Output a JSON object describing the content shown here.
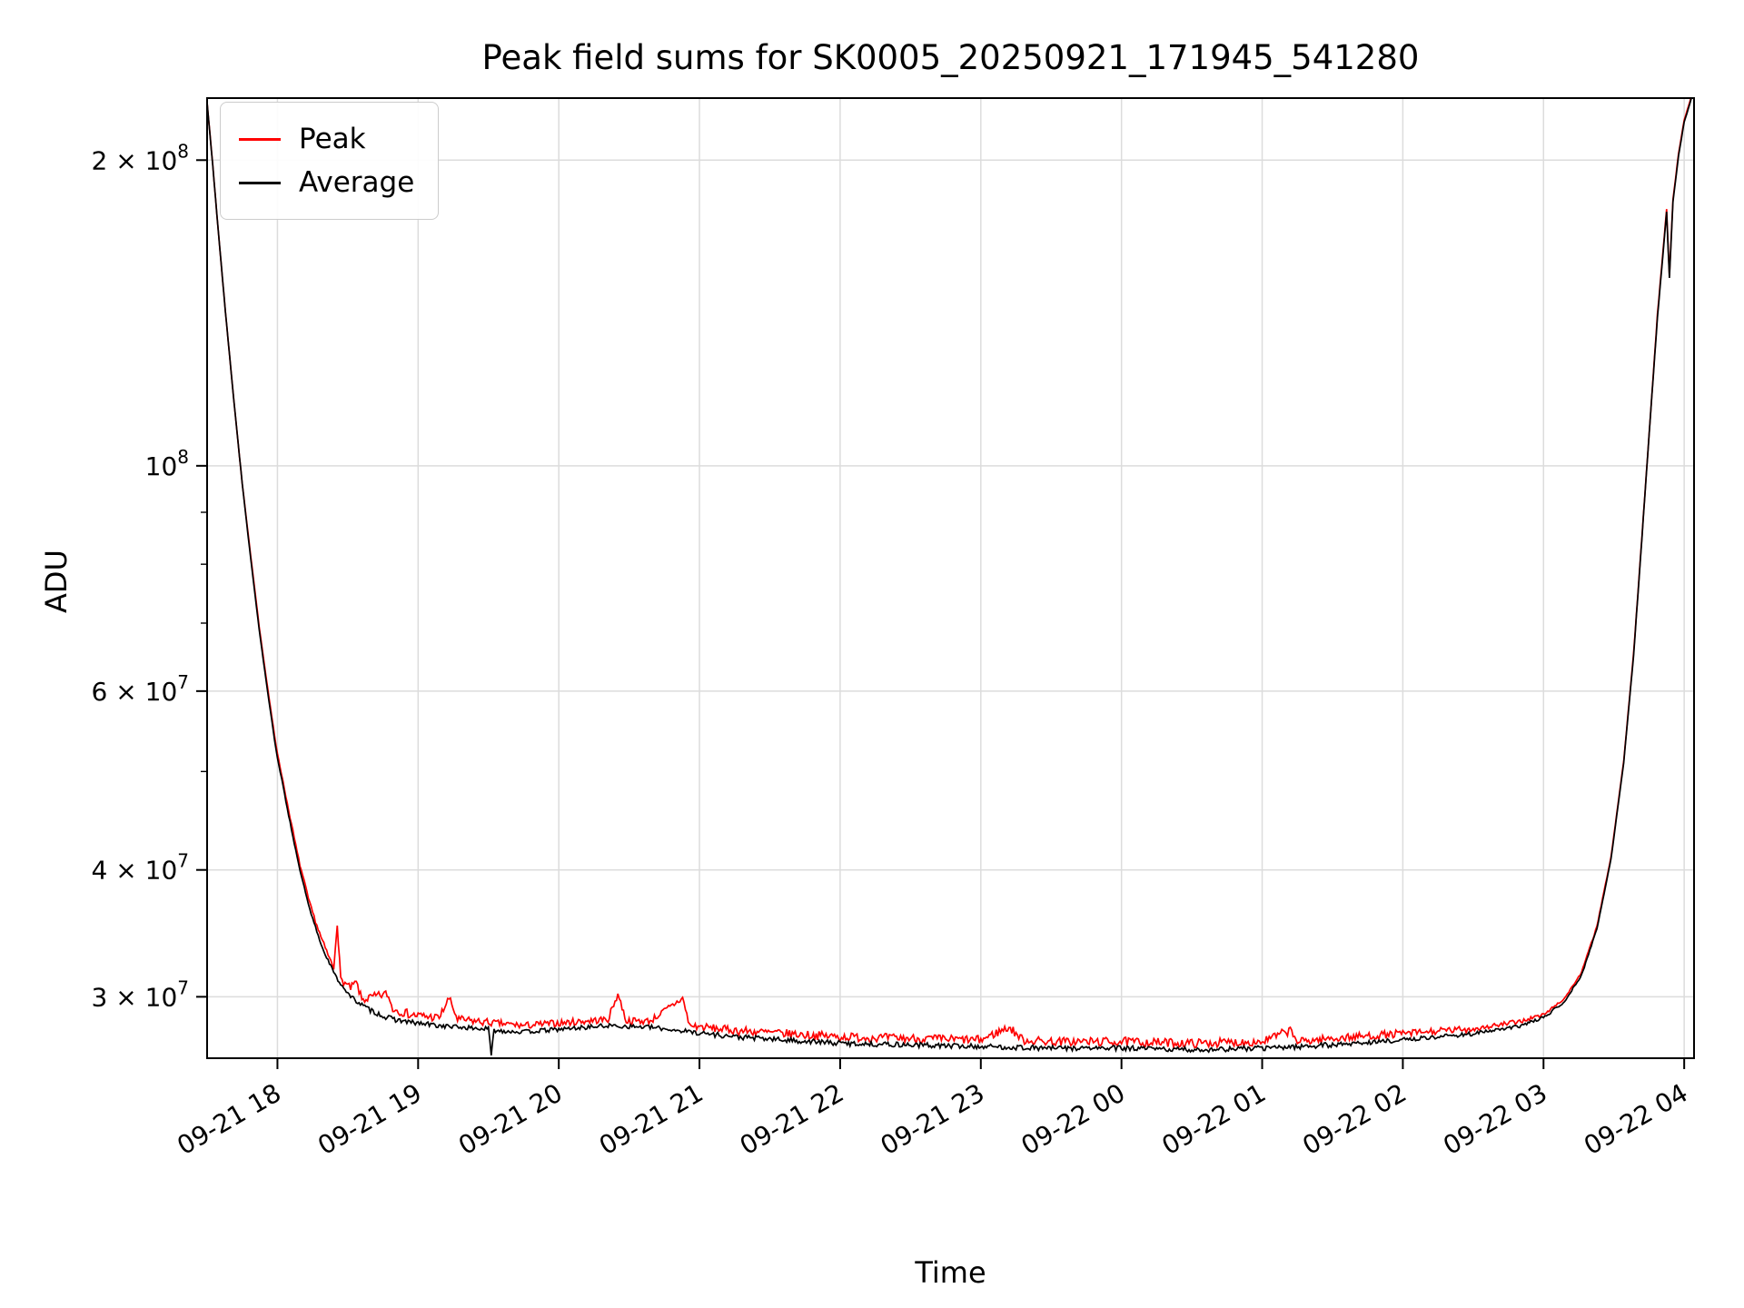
{
  "figure": {
    "background": "#ffffff"
  },
  "chart_data": {
    "type": "line",
    "title": "Peak field sums for SK0005_20250921_171945_541280",
    "xlabel": "Time",
    "ylabel": "ADU",
    "yscale": "log",
    "ylim": [
      26100000.0,
      230200000.0
    ],
    "xlim_hours": [
      -0.5,
      10.07
    ],
    "x_axis_note": "hours relative to 2025-09-21 18:00",
    "grid": true,
    "grid_color": "#dcdcdc",
    "spine_color": "#000000",
    "legend": {
      "position": "upper left"
    },
    "x_ticks": [
      {
        "t": 0,
        "label": "09-21 18"
      },
      {
        "t": 1,
        "label": "09-21 19"
      },
      {
        "t": 2,
        "label": "09-21 20"
      },
      {
        "t": 3,
        "label": "09-21 21"
      },
      {
        "t": 4,
        "label": "09-21 22"
      },
      {
        "t": 5,
        "label": "09-21 23"
      },
      {
        "t": 6,
        "label": "09-22 00"
      },
      {
        "t": 7,
        "label": "09-22 01"
      },
      {
        "t": 8,
        "label": "09-22 02"
      },
      {
        "t": 9,
        "label": "09-22 03"
      },
      {
        "t": 10,
        "label": "09-22 04"
      }
    ],
    "y_ticks": [
      {
        "v": 30000000.0,
        "label": "3 × 10^7"
      },
      {
        "v": 40000000.0,
        "label": "4 × 10^7"
      },
      {
        "v": 60000000.0,
        "label": "6 × 10^7"
      },
      {
        "v": 100000000.0,
        "label": "10^8"
      },
      {
        "v": 200000000.0,
        "label": "2 × 10^8"
      }
    ],
    "y_minor_ticks": [
      50000000.0,
      70000000.0,
      80000000.0,
      90000000.0
    ],
    "series": [
      {
        "name": "Peak",
        "color": "#ff0000",
        "linewidth": 1.7,
        "points": [
          [
            -0.5,
            228000000.0,
            0.001
          ],
          [
            -0.46,
            198000000.0,
            0.001
          ],
          [
            -0.42,
            170000000.0,
            0.001
          ],
          [
            -0.37,
            142000000.0,
            0.001
          ],
          [
            -0.31,
            116000000.0,
            0.001
          ],
          [
            -0.25,
            96000000.0,
            0.001
          ],
          [
            -0.19,
            81500000.0,
            0.001
          ],
          [
            -0.13,
            69500000.0,
            0.001
          ],
          [
            -0.07,
            60500000.0,
            0.001
          ],
          [
            -0.01,
            53000000.0,
            0.002
          ],
          [
            0.07,
            46500000.0,
            0.003
          ],
          [
            0.15,
            41000000.0,
            0.004
          ],
          [
            0.23,
            37000000.0,
            0.005
          ],
          [
            0.32,
            34000000.0,
            0.006
          ],
          [
            0.4,
            32000000.0,
            0.007
          ],
          [
            0.425,
            35500000.0,
            0.007
          ],
          [
            0.45,
            31200000.0,
            0.008
          ],
          [
            0.52,
            30600000.0,
            0.009
          ],
          [
            0.56,
            31000000.0,
            0.009
          ],
          [
            0.6,
            29800000.0,
            0.01
          ],
          [
            0.78,
            30200000.0,
            0.01
          ],
          [
            0.82,
            29200000.0,
            0.01
          ],
          [
            0.95,
            28800000.0,
            0.01
          ],
          [
            1.15,
            28600000.0,
            0.009
          ],
          [
            1.22,
            29900000.0,
            0.009
          ],
          [
            1.28,
            28500000.0,
            0.009
          ],
          [
            1.5,
            28300000.0,
            0.008
          ],
          [
            1.75,
            28100000.0,
            0.008
          ],
          [
            2.05,
            28300000.0,
            0.008
          ],
          [
            2.35,
            28500000.0,
            0.008
          ],
          [
            2.42,
            30200000.0,
            0.008
          ],
          [
            2.48,
            28400000.0,
            0.008
          ],
          [
            2.65,
            28400000.0,
            0.008
          ],
          [
            2.88,
            29900000.0,
            0.009
          ],
          [
            2.93,
            28100000.0,
            0.009
          ],
          [
            3.25,
            27800000.0,
            0.01
          ],
          [
            3.6,
            27600000.0,
            0.01
          ],
          [
            4.0,
            27400000.0,
            0.01
          ],
          [
            4.5,
            27300000.0,
            0.01
          ],
          [
            5.0,
            27200000.0,
            0.01
          ],
          [
            5.2,
            28000000.0,
            0.01
          ],
          [
            5.3,
            27200000.0,
            0.01
          ],
          [
            5.5,
            27100000.0,
            0.01
          ],
          [
            6.0,
            27100000.0,
            0.01
          ],
          [
            6.5,
            27000000.0,
            0.01
          ],
          [
            7.0,
            27100000.0,
            0.01
          ],
          [
            7.2,
            27800000.0,
            0.009
          ],
          [
            7.25,
            27100000.0,
            0.009
          ],
          [
            7.5,
            27300000.0,
            0.009
          ],
          [
            8.0,
            27600000.0,
            0.008
          ],
          [
            8.5,
            27900000.0,
            0.006
          ],
          [
            8.8,
            28300000.0,
            0.005
          ],
          [
            9.0,
            28800000.0,
            0.003
          ],
          [
            9.15,
            29900000.0,
            0.002
          ],
          [
            9.27,
            31700000.0,
            0.002
          ],
          [
            9.38,
            35200000.0,
            0.001
          ],
          [
            9.48,
            41200000.0,
            0.001
          ],
          [
            9.57,
            51200000.0,
            0.001
          ],
          [
            9.64,
            65300000.0,
            0.001
          ],
          [
            9.7,
            85300000.0,
            0.001
          ],
          [
            9.76,
            112000000.0,
            0.001
          ],
          [
            9.81,
            141000000.0,
            0.001
          ],
          [
            9.85,
            163000000.0,
            0.001
          ],
          [
            9.875,
            179000000.0,
            0.001
          ],
          [
            9.895,
            154000000.0,
            0.001
          ],
          [
            9.92,
            183000000.0,
            0.001
          ],
          [
            9.96,
            203000000.0,
            0.001
          ],
          [
            10.0,
            219000000.0,
            0.001
          ],
          [
            10.05,
            231000000.0,
            0.001
          ],
          [
            10.07,
            235000000.0,
            0.001
          ]
        ]
      },
      {
        "name": "Average",
        "color": "#000000",
        "linewidth": 1.7,
        "points": [
          [
            -0.5,
            228000000.0,
            0.001
          ],
          [
            -0.46,
            198000000.0,
            0.001
          ],
          [
            -0.42,
            170000000.0,
            0.001
          ],
          [
            -0.37,
            142000000.0,
            0.001
          ],
          [
            -0.31,
            116000000.0,
            0.001
          ],
          [
            -0.25,
            96000000.0,
            0.001
          ],
          [
            -0.19,
            81000000.0,
            0.001
          ],
          [
            -0.13,
            69000000.0,
            0.001
          ],
          [
            -0.07,
            60000000.0,
            0.001
          ],
          [
            -0.01,
            52500000.0,
            0.002
          ],
          [
            0.07,
            46000000.0,
            0.002
          ],
          [
            0.15,
            40500000.0,
            0.002
          ],
          [
            0.23,
            36500000.0,
            0.003
          ],
          [
            0.32,
            33500000.0,
            0.003
          ],
          [
            0.42,
            31300000.0,
            0.004
          ],
          [
            0.52,
            30000000.0,
            0.005
          ],
          [
            0.64,
            29200000.0,
            0.006
          ],
          [
            0.78,
            28600000.0,
            0.006
          ],
          [
            0.95,
            28300000.0,
            0.006
          ],
          [
            1.15,
            28100000.0,
            0.005
          ],
          [
            1.45,
            27900000.0,
            0.005
          ],
          [
            1.5,
            27900000.0,
            0.005
          ],
          [
            1.52,
            26300000.0,
            0.005
          ],
          [
            1.54,
            27800000.0,
            0.005
          ],
          [
            1.75,
            27700000.0,
            0.005
          ],
          [
            2.05,
            27900000.0,
            0.005
          ],
          [
            2.35,
            28100000.0,
            0.005
          ],
          [
            2.65,
            28000000.0,
            0.005
          ],
          [
            2.95,
            27700000.0,
            0.006
          ],
          [
            3.25,
            27400000.0,
            0.006
          ],
          [
            3.6,
            27200000.0,
            0.006
          ],
          [
            4.0,
            27000000.0,
            0.006
          ],
          [
            4.5,
            26900000.0,
            0.006
          ],
          [
            5.0,
            26800000.0,
            0.006
          ],
          [
            5.5,
            26700000.0,
            0.006
          ],
          [
            6.0,
            26700000.0,
            0.006
          ],
          [
            6.5,
            26600000.0,
            0.006
          ],
          [
            7.0,
            26700000.0,
            0.006
          ],
          [
            7.5,
            26900000.0,
            0.005
          ],
          [
            8.0,
            27200000.0,
            0.005
          ],
          [
            8.5,
            27600000.0,
            0.004
          ],
          [
            8.8,
            28000000.0,
            0.004
          ],
          [
            9.0,
            28600000.0,
            0.003
          ],
          [
            9.15,
            29700000.0,
            0.002
          ],
          [
            9.27,
            31500000.0,
            0.002
          ],
          [
            9.38,
            35000000.0,
            0.001
          ],
          [
            9.48,
            41000000.0,
            0.001
          ],
          [
            9.57,
            51000000.0,
            0.001
          ],
          [
            9.64,
            65000000.0,
            0.001
          ],
          [
            9.7,
            85000000.0,
            0.001
          ],
          [
            9.76,
            112000000.0,
            0.001
          ],
          [
            9.81,
            140000000.0,
            0.001
          ],
          [
            9.85,
            162000000.0,
            0.001
          ],
          [
            9.875,
            178000000.0,
            0.001
          ],
          [
            9.895,
            153000000.0,
            0.001
          ],
          [
            9.92,
            182000000.0,
            0.001
          ],
          [
            9.96,
            202000000.0,
            0.001
          ],
          [
            10.0,
            218000000.0,
            0.001
          ],
          [
            10.05,
            230000000.0,
            0.001
          ],
          [
            10.07,
            234000000.0,
            0.001
          ]
        ]
      }
    ]
  }
}
